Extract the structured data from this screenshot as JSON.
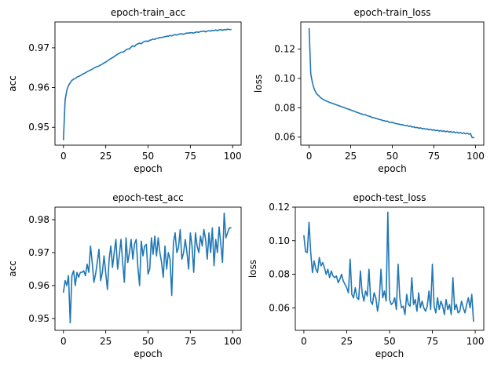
{
  "colors": {
    "series": "#1f77b4",
    "axes": "#000000",
    "background": "#ffffff"
  },
  "chart_data": [
    {
      "type": "line",
      "title": "epoch-train_acc",
      "xlabel": "epoch",
      "ylabel": "acc",
      "xlim": [
        -5,
        105
      ],
      "ylim": [
        0.9455,
        0.9765
      ],
      "xticks": [
        0,
        25,
        50,
        75,
        100
      ],
      "yticks": [
        0.95,
        0.96,
        0.97
      ],
      "grid": false,
      "x": [
        0,
        1,
        2,
        3,
        4,
        5,
        6,
        7,
        8,
        9,
        10,
        11,
        12,
        13,
        14,
        15,
        16,
        17,
        18,
        19,
        20,
        21,
        22,
        23,
        24,
        25,
        26,
        27,
        28,
        29,
        30,
        31,
        32,
        33,
        34,
        35,
        36,
        37,
        38,
        39,
        40,
        41,
        42,
        43,
        44,
        45,
        46,
        47,
        48,
        49,
        50,
        51,
        52,
        53,
        54,
        55,
        56,
        57,
        58,
        59,
        60,
        61,
        62,
        63,
        64,
        65,
        66,
        67,
        68,
        69,
        70,
        71,
        72,
        73,
        74,
        75,
        76,
        77,
        78,
        79,
        80,
        81,
        82,
        83,
        84,
        85,
        86,
        87,
        88,
        89,
        90,
        91,
        92,
        93,
        94,
        95,
        96,
        97,
        98,
        99
      ],
      "series": [
        {
          "values": [
            0.9469,
            0.9569,
            0.9593,
            0.9605,
            0.9612,
            0.9618,
            0.9621,
            0.9623,
            0.9626,
            0.9628,
            0.963,
            0.9633,
            0.9635,
            0.9637,
            0.964,
            0.9642,
            0.9644,
            0.9646,
            0.9649,
            0.9651,
            0.9653,
            0.9654,
            0.9657,
            0.9659,
            0.9662,
            0.9664,
            0.9667,
            0.967,
            0.9673,
            0.9675,
            0.9678,
            0.9681,
            0.9684,
            0.9686,
            0.9689,
            0.9689,
            0.9691,
            0.9695,
            0.9697,
            0.9697,
            0.9702,
            0.9705,
            0.9703,
            0.9708,
            0.971,
            0.9712,
            0.971,
            0.9714,
            0.9716,
            0.9717,
            0.9716,
            0.9719,
            0.972,
            0.9722,
            0.9721,
            0.9724,
            0.9724,
            0.9726,
            0.9726,
            0.9727,
            0.9728,
            0.9729,
            0.9729,
            0.9731,
            0.973,
            0.9732,
            0.9733,
            0.9732,
            0.9734,
            0.9735,
            0.9735,
            0.9734,
            0.9736,
            0.9737,
            0.9737,
            0.9738,
            0.9738,
            0.9737,
            0.9739,
            0.974,
            0.9739,
            0.9741,
            0.9741,
            0.9742,
            0.974,
            0.9742,
            0.9743,
            0.9742,
            0.9744,
            0.9743,
            0.9745,
            0.9743,
            0.9745,
            0.9746,
            0.9744,
            0.9746,
            0.9745,
            0.9747,
            0.9746,
            0.9746
          ]
        }
      ]
    },
    {
      "type": "line",
      "title": "epoch-train_loss",
      "xlabel": "epoch",
      "ylabel": "loss",
      "xlim": [
        -5,
        105
      ],
      "ylim": [
        0.0545,
        0.1385
      ],
      "xticks": [
        0,
        25,
        50,
        75,
        100
      ],
      "yticks": [
        0.06,
        0.08,
        0.1,
        0.12
      ],
      "grid": false,
      "x": [
        0,
        1,
        2,
        3,
        4,
        5,
        6,
        7,
        8,
        9,
        10,
        11,
        12,
        13,
        14,
        15,
        16,
        17,
        18,
        19,
        20,
        21,
        22,
        23,
        24,
        25,
        26,
        27,
        28,
        29,
        30,
        31,
        32,
        33,
        34,
        35,
        36,
        37,
        38,
        39,
        40,
        41,
        42,
        43,
        44,
        45,
        46,
        47,
        48,
        49,
        50,
        51,
        52,
        53,
        54,
        55,
        56,
        57,
        58,
        59,
        60,
        61,
        62,
        63,
        64,
        65,
        66,
        67,
        68,
        69,
        70,
        71,
        72,
        73,
        74,
        75,
        76,
        77,
        78,
        79,
        80,
        81,
        82,
        83,
        84,
        85,
        86,
        87,
        88,
        89,
        90,
        91,
        92,
        93,
        94,
        95,
        96,
        97,
        98,
        99
      ],
      "series": [
        {
          "values": [
            0.134,
            0.103,
            0.097,
            0.093,
            0.0905,
            0.089,
            0.088,
            0.0868,
            0.086,
            0.0853,
            0.0848,
            0.0843,
            0.0838,
            0.0834,
            0.083,
            0.0826,
            0.0821,
            0.0818,
            0.0813,
            0.081,
            0.0805,
            0.0801,
            0.0797,
            0.0793,
            0.0789,
            0.0785,
            0.078,
            0.0777,
            0.0772,
            0.0768,
            0.0764,
            0.076,
            0.0756,
            0.0753,
            0.0752,
            0.0745,
            0.0743,
            0.0739,
            0.0733,
            0.0732,
            0.0728,
            0.0725,
            0.072,
            0.0719,
            0.0714,
            0.0712,
            0.0708,
            0.0709,
            0.0702,
            0.07,
            0.0701,
            0.0696,
            0.0693,
            0.069,
            0.0689,
            0.0684,
            0.0686,
            0.068,
            0.0678,
            0.0679,
            0.0673,
            0.0675,
            0.0668,
            0.067,
            0.0664,
            0.0666,
            0.066,
            0.0663,
            0.0657,
            0.0659,
            0.0654,
            0.0656,
            0.065,
            0.0653,
            0.0647,
            0.065,
            0.0644,
            0.0647,
            0.0641,
            0.0645,
            0.0639,
            0.0643,
            0.0636,
            0.0641,
            0.0634,
            0.0638,
            0.0632,
            0.0636,
            0.0629,
            0.0634,
            0.0627,
            0.0631,
            0.0625,
            0.0629,
            0.0622,
            0.0627,
            0.062,
            0.0624,
            0.0597,
            0.0596
          ]
        }
      ]
    },
    {
      "type": "line",
      "title": "epoch-test_acc",
      "xlabel": "epoch",
      "ylabel": "acc",
      "xlim": [
        -5,
        105
      ],
      "ylim": [
        0.9464,
        0.9838
      ],
      "xticks": [
        0,
        25,
        50,
        75,
        100
      ],
      "yticks": [
        0.95,
        0.96,
        0.97,
        0.98
      ],
      "grid": false,
      "x": [
        0,
        1,
        2,
        3,
        4,
        5,
        6,
        7,
        8,
        9,
        10,
        11,
        12,
        13,
        14,
        15,
        16,
        17,
        18,
        19,
        20,
        21,
        22,
        23,
        24,
        25,
        26,
        27,
        28,
        29,
        30,
        31,
        32,
        33,
        34,
        35,
        36,
        37,
        38,
        39,
        40,
        41,
        42,
        43,
        44,
        45,
        46,
        47,
        48,
        49,
        50,
        51,
        52,
        53,
        54,
        55,
        56,
        57,
        58,
        59,
        60,
        61,
        62,
        63,
        64,
        65,
        66,
        67,
        68,
        69,
        70,
        71,
        72,
        73,
        74,
        75,
        76,
        77,
        78,
        79,
        80,
        81,
        82,
        83,
        84,
        85,
        86,
        87,
        88,
        89,
        90,
        91,
        92,
        93,
        94,
        95,
        96,
        97,
        98,
        99
      ],
      "series": [
        {
          "values": [
            0.958,
            0.9615,
            0.96,
            0.963,
            0.9487,
            0.963,
            0.9645,
            0.96,
            0.964,
            0.9625,
            0.964,
            0.964,
            0.9645,
            0.963,
            0.9665,
            0.964,
            0.972,
            0.967,
            0.961,
            0.9635,
            0.967,
            0.971,
            0.9615,
            0.964,
            0.969,
            0.9638,
            0.9588,
            0.968,
            0.972,
            0.9655,
            0.97,
            0.974,
            0.965,
            0.969,
            0.974,
            0.967,
            0.961,
            0.9745,
            0.967,
            0.97,
            0.974,
            0.968,
            0.9725,
            0.974,
            0.9655,
            0.96,
            0.9735,
            0.969,
            0.972,
            0.9725,
            0.9635,
            0.965,
            0.9745,
            0.9695,
            0.975,
            0.969,
            0.9745,
            0.97,
            0.967,
            0.9625,
            0.972,
            0.965,
            0.97,
            0.968,
            0.957,
            0.973,
            0.976,
            0.97,
            0.9715,
            0.977,
            0.968,
            0.97,
            0.974,
            0.97,
            0.965,
            0.976,
            0.972,
            0.964,
            0.976,
            0.972,
            0.97,
            0.975,
            0.972,
            0.977,
            0.974,
            0.968,
            0.976,
            0.97,
            0.9775,
            0.966,
            0.974,
            0.97,
            0.9778,
            0.9725,
            0.967,
            0.982,
            0.9745,
            0.976,
            0.9775,
            0.9775
          ]
        }
      ]
    },
    {
      "type": "line",
      "title": "epoch-test_loss",
      "xlabel": "epoch",
      "ylabel": "loss",
      "xlim": [
        -5,
        105
      ],
      "ylim": [
        0.0466,
        0.12
      ],
      "xticks": [
        0,
        25,
        50,
        75,
        100
      ],
      "yticks": [
        0.06,
        0.08,
        0.1,
        0.12
      ],
      "grid": false,
      "x": [
        0,
        1,
        2,
        3,
        4,
        5,
        6,
        7,
        8,
        9,
        10,
        11,
        12,
        13,
        14,
        15,
        16,
        17,
        18,
        19,
        20,
        21,
        22,
        23,
        24,
        25,
        26,
        27,
        28,
        29,
        30,
        31,
        32,
        33,
        34,
        35,
        36,
        37,
        38,
        39,
        40,
        41,
        42,
        43,
        44,
        45,
        46,
        47,
        48,
        49,
        50,
        51,
        52,
        53,
        54,
        55,
        56,
        57,
        58,
        59,
        60,
        61,
        62,
        63,
        64,
        65,
        66,
        67,
        68,
        69,
        70,
        71,
        72,
        73,
        74,
        75,
        76,
        77,
        78,
        79,
        80,
        81,
        82,
        83,
        84,
        85,
        86,
        87,
        88,
        89,
        90,
        91,
        92,
        93,
        94,
        95,
        96,
        97,
        98,
        99
      ],
      "series": [
        {
          "values": [
            0.103,
            0.0935,
            0.093,
            0.111,
            0.093,
            0.081,
            0.088,
            0.083,
            0.081,
            0.09,
            0.085,
            0.087,
            0.084,
            0.08,
            0.083,
            0.078,
            0.082,
            0.079,
            0.078,
            0.079,
            0.075,
            0.077,
            0.08,
            0.076,
            0.074,
            0.072,
            0.069,
            0.089,
            0.068,
            0.066,
            0.072,
            0.066,
            0.065,
            0.082,
            0.069,
            0.064,
            0.07,
            0.067,
            0.083,
            0.064,
            0.062,
            0.069,
            0.066,
            0.058,
            0.065,
            0.083,
            0.066,
            0.07,
            0.064,
            0.117,
            0.065,
            0.062,
            0.063,
            0.066,
            0.059,
            0.086,
            0.066,
            0.06,
            0.061,
            0.056,
            0.068,
            0.062,
            0.061,
            0.078,
            0.062,
            0.065,
            0.058,
            0.069,
            0.06,
            0.064,
            0.06,
            0.058,
            0.061,
            0.07,
            0.059,
            0.086,
            0.061,
            0.057,
            0.066,
            0.059,
            0.064,
            0.061,
            0.056,
            0.065,
            0.059,
            0.062,
            0.056,
            0.078,
            0.059,
            0.062,
            0.057,
            0.058,
            0.064,
            0.06,
            0.057,
            0.062,
            0.066,
            0.06,
            0.068,
            0.052
          ]
        }
      ]
    }
  ]
}
